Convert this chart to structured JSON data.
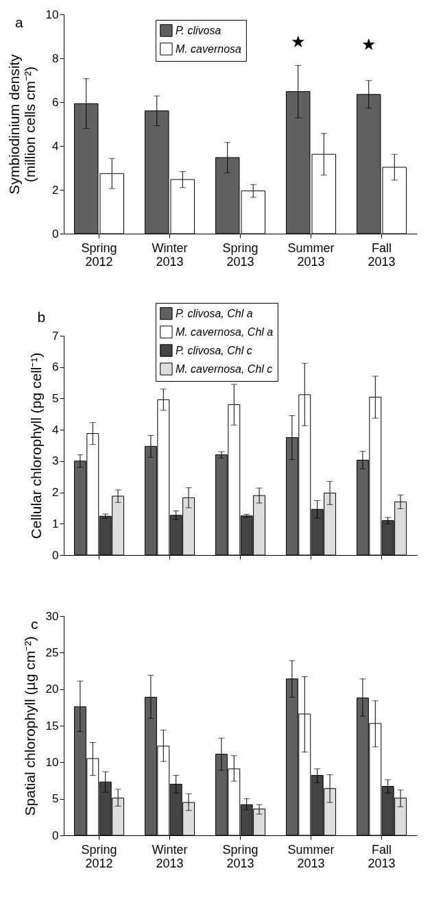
{
  "chart_data": [
    {
      "type": "bar",
      "title": "a",
      "ylabel": "Symbiodinium density (million cells cm⁻²)",
      "categories": [
        "Spring 2012",
        "Winter 2013",
        "Spring 2013",
        "Summer 2013",
        "Fall 2013"
      ],
      "ylim": [
        0,
        10
      ],
      "yticks": [
        0,
        2,
        4,
        6,
        8,
        10
      ],
      "legend": "top",
      "grid": false,
      "series": [
        {
          "name": "P. clivosa",
          "color": "#606060",
          "values": [
            5.93,
            5.6,
            3.47,
            6.48,
            6.35
          ],
          "errors": [
            [
              4.8,
              7.07
            ],
            [
              4.92,
              6.28
            ],
            [
              2.78,
              4.16
            ],
            [
              5.28,
              7.67
            ],
            [
              5.72,
              6.98
            ]
          ]
        },
        {
          "name": "M. cavernosa",
          "color": "#ffffff",
          "values": [
            2.74,
            2.47,
            1.95,
            3.62,
            3.03
          ],
          "errors": [
            [
              2.06,
              3.43
            ],
            [
              2.1,
              2.83
            ],
            [
              1.66,
              2.24
            ],
            [
              2.67,
              4.57
            ],
            [
              2.44,
              3.62
            ]
          ]
        }
      ],
      "annotations": [
        {
          "text": "★",
          "x": "Summer 2013",
          "y": 6.48
        },
        {
          "text": "★",
          "x": "Fall 2013",
          "y": 6.35
        }
      ]
    },
    {
      "type": "bar",
      "title": "b",
      "ylabel": "Cellular chlorophyll (pg cell⁻¹)",
      "categories": [
        null,
        null,
        null,
        null,
        null
      ],
      "ylim": [
        0,
        7
      ],
      "yticks": [
        0,
        1,
        2,
        3,
        4,
        5,
        6,
        7
      ],
      "legend": "top",
      "grid": false,
      "series": [
        {
          "name": "P. clivosa, Chl a",
          "color": "#606060",
          "values": [
            3.0,
            3.47,
            3.2,
            3.75,
            3.03
          ],
          "errors": [
            [
              2.8,
              3.2
            ],
            [
              3.12,
              3.82
            ],
            [
              3.1,
              3.3
            ],
            [
              3.05,
              4.45
            ],
            [
              2.75,
              3.31
            ]
          ]
        },
        {
          "name": "M. cavernosa, Chl a",
          "color": "#ffffff",
          "values": [
            3.88,
            4.96,
            4.8,
            5.12,
            5.04
          ],
          "errors": [
            [
              3.53,
              4.23
            ],
            [
              4.62,
              5.3
            ],
            [
              4.15,
              5.45
            ],
            [
              4.13,
              6.12
            ],
            [
              4.37,
              5.71
            ]
          ]
        },
        {
          "name": "P. clivosa, Chl c",
          "color": "#444444",
          "values": [
            1.24,
            1.27,
            1.25,
            1.46,
            1.1
          ],
          "errors": [
            [
              1.17,
              1.31
            ],
            [
              1.13,
              1.41
            ],
            [
              1.2,
              1.3
            ],
            [
              1.18,
              1.74
            ],
            [
              1.0,
              1.2
            ]
          ]
        },
        {
          "name": "M. cavernosa, Chl c",
          "color": "#dddddd",
          "values": [
            1.88,
            1.83,
            1.9,
            1.98,
            1.7
          ],
          "errors": [
            [
              1.68,
              2.08
            ],
            [
              1.51,
              2.15
            ],
            [
              1.66,
              2.14
            ],
            [
              1.61,
              2.35
            ],
            [
              1.48,
              1.92
            ]
          ]
        }
      ]
    },
    {
      "type": "bar",
      "title": "c",
      "ylabel": "Spatial chlorophyll (µg cm⁻²)",
      "categories": [
        "Spring 2012",
        "Winter 2013",
        "Spring 2013",
        "Summer 2013",
        "Fall 2013"
      ],
      "ylim": [
        0,
        30
      ],
      "yticks": [
        0,
        5,
        10,
        15,
        20,
        25,
        30
      ],
      "grid": false,
      "series": [
        {
          "color": "#606060",
          "values": [
            17.6,
            18.9,
            11.1,
            21.4,
            18.8
          ],
          "errors": [
            [
              14.2,
              21.1
            ],
            [
              16.0,
              21.9
            ],
            [
              8.9,
              13.3
            ],
            [
              18.9,
              23.9
            ],
            [
              16.3,
              21.4
            ]
          ]
        },
        {
          "color": "#ffffff",
          "values": [
            10.5,
            12.2,
            9.1,
            16.6,
            15.3
          ],
          "errors": [
            [
              8.2,
              12.7
            ],
            [
              10.1,
              14.4
            ],
            [
              7.4,
              10.9
            ],
            [
              11.4,
              21.7
            ],
            [
              12.1,
              18.4
            ]
          ]
        },
        {
          "color": "#444444",
          "values": [
            7.3,
            7.0,
            4.2,
            8.2,
            6.7
          ],
          "errors": [
            [
              5.9,
              8.7
            ],
            [
              5.8,
              8.2
            ],
            [
              3.5,
              5.0
            ],
            [
              7.2,
              9.1
            ],
            [
              5.8,
              7.6
            ]
          ]
        },
        {
          "color": "#dddddd",
          "values": [
            5.1,
            4.5,
            3.6,
            6.4,
            5.1
          ],
          "errors": [
            [
              4.0,
              6.3
            ],
            [
              3.4,
              5.7
            ],
            [
              2.9,
              4.2
            ],
            [
              4.5,
              8.3
            ],
            [
              3.9,
              6.2
            ]
          ]
        }
      ]
    }
  ]
}
